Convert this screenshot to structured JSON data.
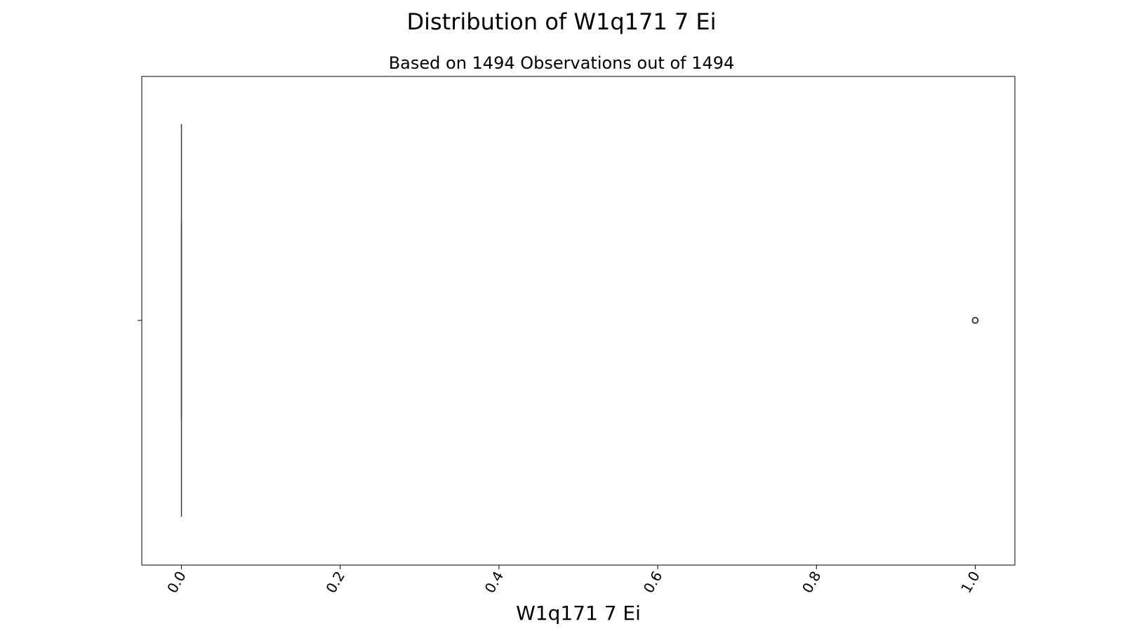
{
  "chart_data": {
    "type": "box",
    "title": "Distribution of W1q171 7 Ei",
    "subtitle": "Based on 1494 Observations out of 1494",
    "xlabel": "W1q171 7 Ei",
    "xlim": [
      -0.05,
      1.05
    ],
    "x_ticks": [
      0.0,
      0.2,
      0.4,
      0.6,
      0.8,
      1.0
    ],
    "x_tick_labels": [
      "0.0",
      "0.2",
      "0.4",
      "0.6",
      "0.8",
      "1.0"
    ],
    "box": {
      "whisker_low": 0.0,
      "q1": 0.0,
      "median": 0.0,
      "q3": 0.0,
      "whisker_high": 0.0
    },
    "outliers": [
      1.0
    ],
    "grid": false,
    "colors": {
      "box": "#3b6fb6",
      "line": "#3f3f3f",
      "outlier": "#3f3f3f"
    }
  }
}
